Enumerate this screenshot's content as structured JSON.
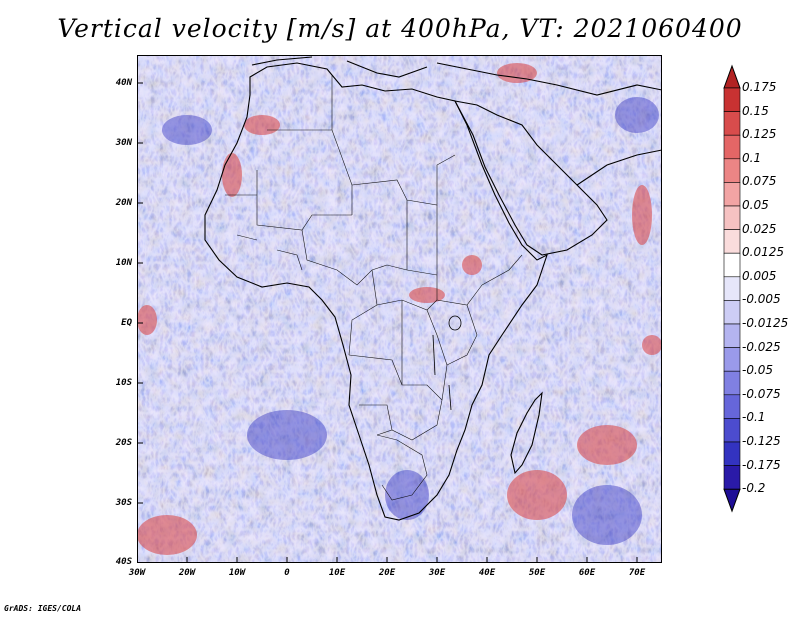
{
  "title": "Vertical velocity [m/s] at 400hPa, VT: 2021060400",
  "credit": "GrADS: IGES/COLA",
  "map": {
    "region": "Africa",
    "lat_labels": [
      "40N",
      "30N",
      "20N",
      "10N",
      "EQ",
      "10S",
      "20S",
      "30S",
      "40S"
    ],
    "lon_labels": [
      "30W",
      "20W",
      "10W",
      "0",
      "10E",
      "20E",
      "30E",
      "40E",
      "50E",
      "60E",
      "70E"
    ]
  },
  "colorbar": {
    "labels": [
      "0.175",
      "0.15",
      "0.125",
      "0.1",
      "0.075",
      "0.05",
      "0.025",
      "0.0125",
      "0.005",
      "-0.005",
      "-0.0125",
      "-0.025",
      "-0.05",
      "-0.075",
      "-0.1",
      "-0.125",
      "-0.175",
      "-0.2"
    ],
    "colors": [
      "#b22222",
      "#c83232",
      "#d84c4c",
      "#e46666",
      "#ec8585",
      "#f2a4a4",
      "#f6c2c2",
      "#fadcdc",
      "#ffffff",
      "#e6e6fa",
      "#cdcdf5",
      "#b4b4f0",
      "#9a9aea",
      "#8080e2",
      "#6666da",
      "#4c4cce",
      "#3333c0",
      "#2a1aa8",
      "#1e0e96"
    ]
  }
}
